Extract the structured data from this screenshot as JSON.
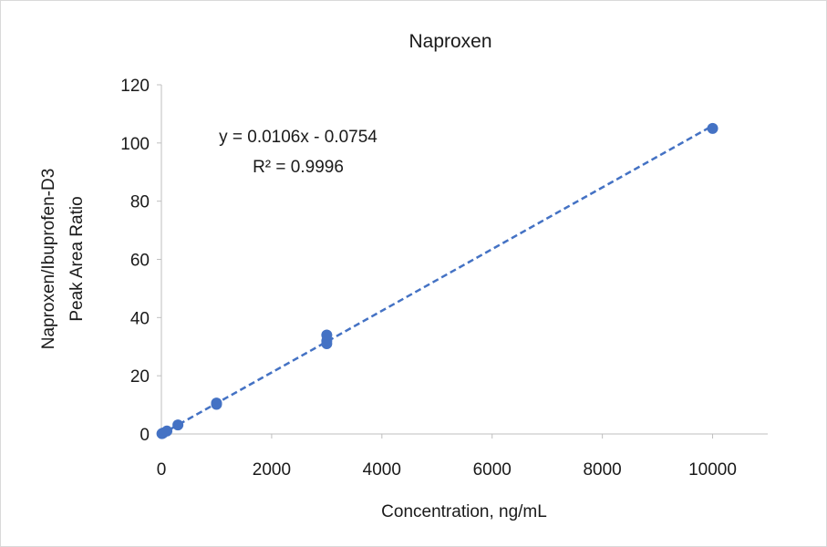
{
  "chart_data": {
    "type": "scatter",
    "title": "Naproxen",
    "xlabel": "Concentration, ng/mL",
    "ylabel_lines": [
      "Naproxen/Ibuprofen-D3",
      "Peak Area Ratio"
    ],
    "xlim": [
      0,
      11000
    ],
    "ylim": [
      0,
      120
    ],
    "x_ticks": [
      0,
      2000,
      4000,
      6000,
      8000,
      10000
    ],
    "y_ticks": [
      0,
      20,
      40,
      60,
      80,
      100,
      120
    ],
    "grid": false,
    "legend": "none",
    "series": [
      {
        "color": "#4472c4",
        "points": [
          {
            "x": 10,
            "y": 0.1
          },
          {
            "x": 30,
            "y": 0.3
          },
          {
            "x": 100,
            "y": 1.0
          },
          {
            "x": 300,
            "y": 3.1
          },
          {
            "x": 1000,
            "y": 10.2
          },
          {
            "x": 1000,
            "y": 10.6
          },
          {
            "x": 3000,
            "y": 31.0
          },
          {
            "x": 3000,
            "y": 32.0
          },
          {
            "x": 3000,
            "y": 34.0
          },
          {
            "x": 10000,
            "y": 105.0
          }
        ]
      }
    ],
    "trendline": {
      "type": "linear",
      "style": "dashed",
      "color": "#4472c4",
      "slope": 0.0106,
      "intercept": -0.0754,
      "x_range": [
        0,
        10000
      ],
      "equation_text": "y = 0.0106x - 0.0754",
      "r2_text": "R² = 0.9996"
    }
  }
}
